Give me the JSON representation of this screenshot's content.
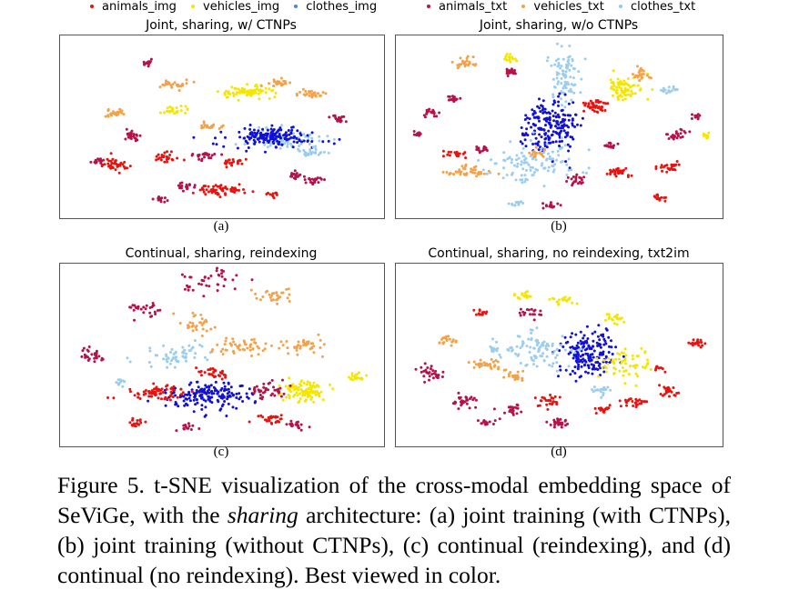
{
  "legend_left": [
    {
      "label": "animals_img",
      "color": "#e8130f"
    },
    {
      "label": "vehicles_img",
      "color": "#f5e600"
    },
    {
      "label": "clothes_img",
      "color": "#4d84d4"
    }
  ],
  "legend_right": [
    {
      "label": "animals_txt",
      "color": "#c2113f"
    },
    {
      "label": "vehicles_txt",
      "color": "#f4a24a"
    },
    {
      "label": "clothes_txt",
      "color": "#8ec9ef"
    }
  ],
  "panels": [
    {
      "title": "Joint, sharing, w/ CTNPs",
      "label": "(a)"
    },
    {
      "title": "Joint, sharing, w/o CTNPs",
      "label": "(b)"
    },
    {
      "title": "Continual, sharing, reindexing",
      "label": "(c)"
    },
    {
      "title": "Continual, sharing, no reindexing, txt2im",
      "label": "(d)"
    }
  ],
  "caption": {
    "prefix": "Figure 5. t-SNE visualization of the cross-modal embedding space of SeViGe, with the ",
    "emph": "sharing",
    "suffix": " architecture: (a) joint training (with CTNPs), (b) joint training (without CTNPs), (c) continual (reindexing), and (d) continual (no reindexing). Best viewed in color."
  },
  "colors": {
    "animals_img": "#e8130f",
    "vehicles_img": "#f5e600",
    "clothes_img": "#1010d8",
    "animals_txt": "#b5124a",
    "vehicles_txt": "#f4a24a",
    "clothes_txt": "#9bcdf0"
  },
  "chart_data": [
    {
      "type": "scatter",
      "title": "Joint, sharing, w/ CTNPs",
      "series": [
        {
          "name": "animals_img"
        },
        {
          "name": "vehicles_img"
        },
        {
          "name": "clothes_img"
        },
        {
          "name": "animals_txt"
        },
        {
          "name": "vehicles_txt"
        },
        {
          "name": "clothes_txt"
        }
      ],
      "grid": false,
      "legend": "top"
    },
    {
      "type": "scatter",
      "title": "Joint, sharing, w/o CTNPs",
      "series": [
        {
          "name": "animals_img"
        },
        {
          "name": "vehicles_img"
        },
        {
          "name": "clothes_img"
        },
        {
          "name": "animals_txt"
        },
        {
          "name": "vehicles_txt"
        },
        {
          "name": "clothes_txt"
        }
      ],
      "grid": false,
      "legend": "top"
    },
    {
      "type": "scatter",
      "title": "Continual, sharing, reindexing",
      "series": [
        {
          "name": "animals_img"
        },
        {
          "name": "vehicles_img"
        },
        {
          "name": "clothes_img"
        },
        {
          "name": "animals_txt"
        },
        {
          "name": "vehicles_txt"
        },
        {
          "name": "clothes_txt"
        }
      ],
      "grid": false,
      "legend": "top"
    },
    {
      "type": "scatter",
      "title": "Continual, sharing, no reindexing, txt2im",
      "series": [
        {
          "name": "animals_img"
        },
        {
          "name": "vehicles_img"
        },
        {
          "name": "clothes_img"
        },
        {
          "name": "animals_txt"
        },
        {
          "name": "vehicles_txt"
        },
        {
          "name": "clothes_txt"
        }
      ],
      "grid": false,
      "legend": "top"
    }
  ]
}
